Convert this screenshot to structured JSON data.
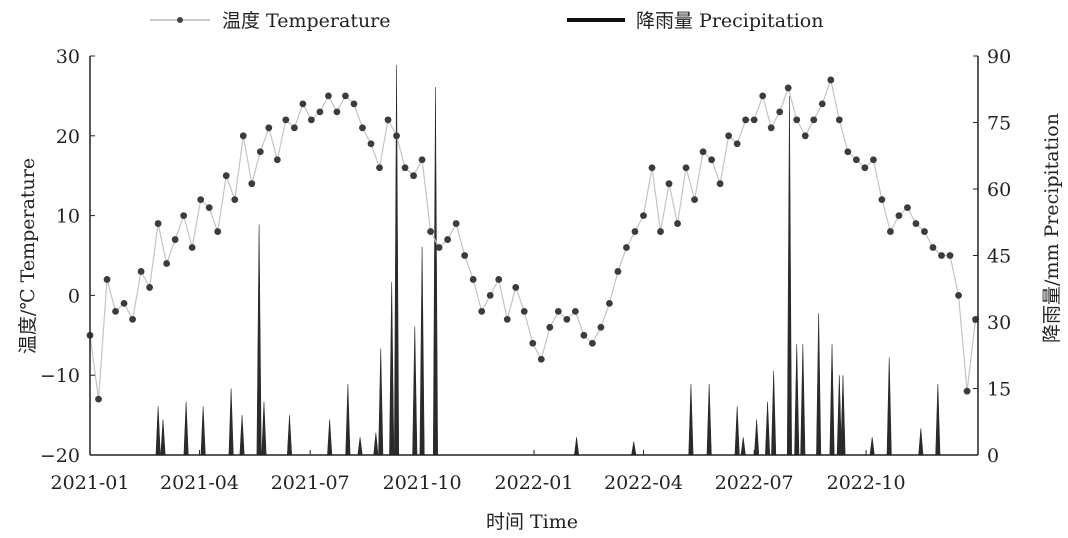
{
  "chart_data": {
    "type": "line+bar",
    "x_unit": "days since 2021-01-01",
    "xlim": [
      0,
      730
    ],
    "xlabel": "时间 Time",
    "x_ticks": [
      {
        "day": 0,
        "label": "2021-01"
      },
      {
        "day": 90,
        "label": "2021-04"
      },
      {
        "day": 181,
        "label": "2021-07"
      },
      {
        "day": 273,
        "label": "2021-10"
      },
      {
        "day": 365,
        "label": "2022-01"
      },
      {
        "day": 455,
        "label": "2022-04"
      },
      {
        "day": 546,
        "label": "2022-07"
      },
      {
        "day": 638,
        "label": "2022-10"
      }
    ],
    "y_left": {
      "label": "温度/℃ Temperature",
      "lim": [
        -20,
        30
      ],
      "ticks": [
        "30",
        "20",
        "10",
        "0",
        "−10",
        "−20"
      ],
      "tick_values": [
        30,
        20,
        10,
        0,
        -10,
        -20
      ]
    },
    "y_right": {
      "label": "降雨量/mm Precipitation",
      "lim": [
        0,
        90
      ],
      "ticks": [
        "90",
        "75",
        "60",
        "45",
        "30",
        "15",
        "0"
      ],
      "tick_values": [
        90,
        75,
        60,
        45,
        30,
        15,
        0
      ]
    },
    "legend": {
      "placement": "top",
      "entries": [
        "温度 Temperature",
        "降雨量 Precipitation"
      ]
    },
    "series": [
      {
        "name": "温度 Temperature",
        "type": "line",
        "color": "#555555",
        "days": [
          0,
          7,
          14,
          21,
          28,
          35,
          42,
          49,
          56,
          63,
          70,
          77,
          84,
          91,
          98,
          105,
          112,
          119,
          126,
          133,
          140,
          147,
          154,
          161,
          168,
          175,
          182,
          189,
          196,
          203,
          210,
          217,
          224,
          231,
          238,
          245,
          252,
          259,
          266,
          273,
          280,
          287,
          294,
          301,
          308,
          315,
          322,
          329,
          336,
          343,
          350,
          357,
          364,
          371,
          378,
          385,
          392,
          399,
          406,
          413,
          420,
          427,
          434,
          441,
          448,
          455,
          462,
          469,
          476,
          483,
          490,
          497,
          504,
          511,
          518,
          525,
          532,
          539,
          546,
          553,
          560,
          567,
          574,
          581,
          588,
          595,
          602,
          609,
          616,
          623,
          630,
          637,
          644,
          651,
          658,
          665,
          672,
          679,
          686,
          693,
          700,
          707,
          714,
          721,
          728
        ],
        "values": [
          -5,
          -13,
          2,
          -2,
          -1,
          -3,
          3,
          1,
          9,
          4,
          7,
          10,
          6,
          12,
          11,
          8,
          15,
          12,
          20,
          14,
          18,
          21,
          17,
          22,
          21,
          24,
          22,
          23,
          25,
          23,
          25,
          24,
          21,
          19,
          16,
          22,
          20,
          16,
          15,
          17,
          8,
          6,
          7,
          9,
          5,
          2,
          -2,
          0,
          2,
          -3,
          1,
          -2,
          -6,
          -8,
          -4,
          -2,
          -3,
          -2,
          -5,
          -6,
          -4,
          -1,
          3,
          6,
          8,
          10,
          16,
          8,
          14,
          9,
          16,
          12,
          18,
          17,
          14,
          20,
          19,
          22,
          22,
          25,
          21,
          23,
          26,
          22,
          20,
          22,
          24,
          27,
          22,
          18,
          17,
          16,
          17,
          12,
          8,
          10,
          11,
          9,
          8,
          6,
          5,
          5,
          0,
          -12,
          -3
        ]
      },
      {
        "name": "降雨量 Precipitation",
        "type": "bar",
        "color": "#111111",
        "days": [
          56,
          60,
          79,
          93,
          116,
          125,
          139,
          143,
          164,
          197,
          212,
          222,
          235,
          239,
          248,
          252,
          267,
          273,
          284,
          400,
          447,
          494,
          509,
          532,
          537,
          548,
          557,
          562,
          575,
          581,
          586,
          599,
          610,
          616,
          619,
          643,
          657,
          683,
          697
        ],
        "values": [
          11,
          8,
          12,
          11,
          15,
          9,
          52,
          12,
          9,
          8,
          16,
          4,
          5,
          24,
          39,
          88,
          29,
          47,
          83,
          4,
          3,
          16,
          16,
          11,
          4,
          8,
          12,
          19,
          81,
          25,
          25,
          32,
          25,
          18,
          18,
          4,
          22,
          6,
          16
        ]
      }
    ]
  }
}
